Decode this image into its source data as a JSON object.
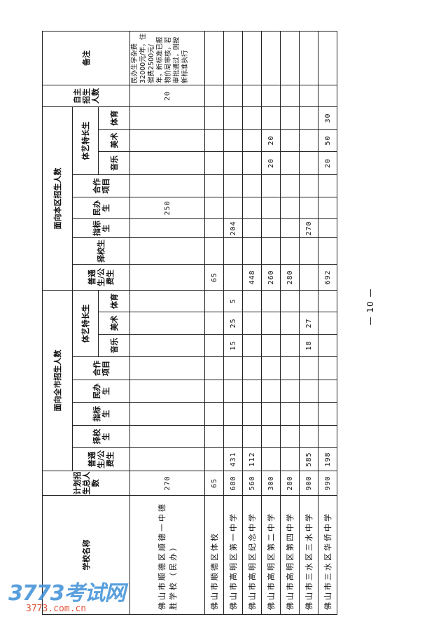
{
  "headers": {
    "school_name": "学校名称",
    "plan_total": "计划招生总人数",
    "city_group": "面向全市招生人数",
    "district_group": "面向本区招生人数",
    "regular": "普通生/公费生",
    "choice": "择校生",
    "quota": "指标生",
    "private": "民办生",
    "coop": "合作项目",
    "arts_sports": "体艺特长生",
    "music": "音乐",
    "art": "美术",
    "sports": "体育",
    "autonomous": "自主招生人数",
    "remark": "备注"
  },
  "rows": [
    {
      "name": "佛山市顺德区顺德一中德胜学校（民办）",
      "total": "270",
      "city": [
        "",
        "",
        "",
        "",
        "",
        "",
        "",
        ""
      ],
      "district": [
        "",
        "",
        "",
        "250",
        "",
        "",
        "",
        ""
      ],
      "autonomous": "20",
      "remark": "民办生学杂费32000元/年，住宿费2500元/年，新标准已报物价局审核，若审批通过，则按新标准执行"
    },
    {
      "name": "佛山市顺德区体校",
      "total": "65",
      "city": [
        "",
        "",
        "",
        "",
        "",
        "",
        "",
        ""
      ],
      "district": [
        "65",
        "",
        "",
        "",
        "",
        "",
        "",
        ""
      ],
      "autonomous": "",
      "remark": ""
    },
    {
      "name": "佛山市高明区第一中学",
      "total": "680",
      "city": [
        "431",
        "",
        "",
        "",
        "",
        "15",
        "25",
        "5"
      ],
      "district": [
        "",
        "",
        "204",
        "",
        "",
        "",
        "",
        ""
      ],
      "autonomous": "",
      "remark": ""
    },
    {
      "name": "佛山市高明区纪念中学",
      "total": "560",
      "city": [
        "112",
        "",
        "",
        "",
        "",
        "",
        "",
        ""
      ],
      "district": [
        "448",
        "",
        "",
        "",
        "",
        "",
        "",
        ""
      ],
      "autonomous": "",
      "remark": ""
    },
    {
      "name": "佛山市高明区第二中学",
      "total": "300",
      "city": [
        "",
        "",
        "",
        "",
        "",
        "",
        "",
        ""
      ],
      "district": [
        "260",
        "",
        "",
        "",
        "",
        "20",
        "20",
        ""
      ],
      "autonomous": "",
      "remark": ""
    },
    {
      "name": "佛山市高明区第四中学",
      "total": "280",
      "city": [
        "",
        "",
        "",
        "",
        "",
        "",
        "",
        ""
      ],
      "district": [
        "280",
        "",
        "",
        "",
        "",
        "",
        "",
        ""
      ],
      "autonomous": "",
      "remark": ""
    },
    {
      "name": "佛山市三水区三水中学",
      "total": "900",
      "city": [
        "585",
        "",
        "",
        "",
        "",
        "18",
        "27",
        ""
      ],
      "district": [
        "",
        "",
        "270",
        "",
        "",
        "",
        "",
        ""
      ],
      "autonomous": "",
      "remark": ""
    },
    {
      "name": "佛山市三水区华侨中学",
      "total": "990",
      "city": [
        "198",
        "",
        "",
        "",
        "",
        "",
        "",
        ""
      ],
      "district": [
        "692",
        "",
        "",
        "",
        "",
        "20",
        "50",
        "30"
      ],
      "autonomous": "",
      "remark": ""
    }
  ],
  "page_number": "— 10 —",
  "watermark": {
    "logo": "3773考试网",
    "url": "3773.com.cn"
  }
}
